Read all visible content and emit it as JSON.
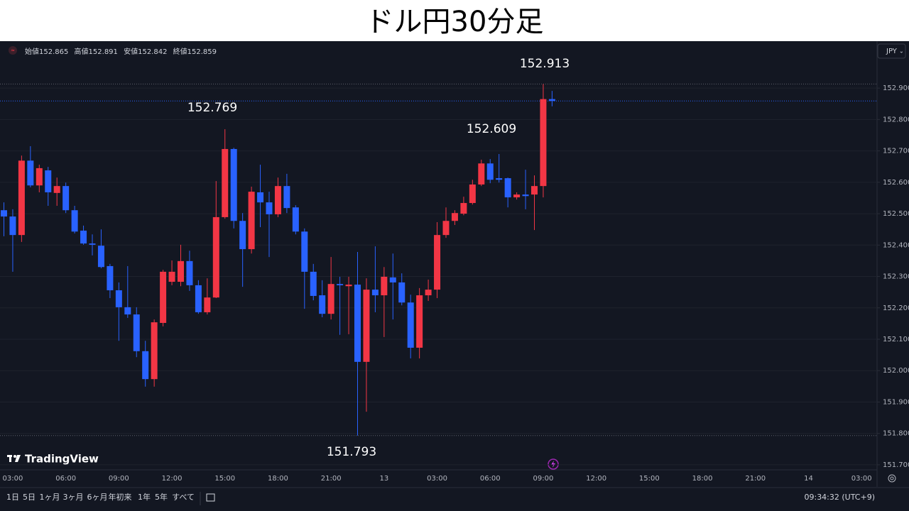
{
  "header_title": "ドル円30分足",
  "ohlc_header": [
    {
      "label": "始値",
      "value": 152.865
    },
    {
      "label": "高値",
      "value": 152.891
    },
    {
      "label": "安値",
      "value": 152.842
    },
    {
      "label": "終値",
      "value": 152.859
    }
  ],
  "currency": "JPY",
  "brand": "TradingView",
  "ranges": [
    "1日",
    "5日",
    "1ヶ月",
    "3ヶ月",
    "6ヶ月",
    "年初来",
    "1年",
    "5年",
    "すべて"
  ],
  "clock": "09:34:32 (UTC+9)",
  "chart_data": {
    "type": "candlestick",
    "annotations": [
      "152.913",
      "152.769",
      "152.609",
      "151.793"
    ],
    "up_color": "#f23645",
    "down_color": "#2962ff",
    "ylim": [
      151.684,
      153.045
    ],
    "yticks": [
      {
        "value": 151.7,
        "label": "151.700"
      },
      {
        "value": 151.8,
        "label": "151.800"
      },
      {
        "value": 151.9,
        "label": "151.900"
      },
      {
        "value": 152,
        "label": "152.000"
      },
      {
        "value": 152.1,
        "label": "152.100"
      },
      {
        "value": 152.2,
        "label": "152.200"
      },
      {
        "value": 152.3,
        "label": "152.300"
      },
      {
        "value": 152.4,
        "label": "152.400"
      },
      {
        "value": 152.5,
        "label": "152.500"
      },
      {
        "value": 152.6,
        "label": "152.600"
      },
      {
        "value": 152.7,
        "label": "152.700"
      },
      {
        "value": 152.8,
        "label": "152.800"
      },
      {
        "value": 152.9,
        "label": "152.900"
      }
    ],
    "grid": true,
    "categories": [
      null,
      "03:00",
      null,
      null,
      null,
      null,
      null,
      "06:00",
      null,
      null,
      null,
      null,
      null,
      "09:00",
      null,
      null,
      null,
      null,
      null,
      "12:00",
      null,
      null,
      null,
      null,
      null,
      "15:00",
      null,
      null,
      null,
      null,
      null,
      "18:00",
      null,
      null,
      null,
      null,
      null,
      "21:00",
      null,
      null,
      null,
      null,
      null,
      "13",
      null,
      null,
      null,
      null,
      null,
      "03:00",
      null,
      null,
      null,
      null,
      null,
      "06:00",
      null,
      null,
      null,
      null,
      null,
      "09:00",
      null,
      null,
      null,
      null,
      null,
      "12:00",
      null,
      null,
      null,
      null,
      null,
      "15:00",
      null,
      null,
      null,
      null,
      null,
      "18:00",
      null,
      null,
      null,
      null,
      null,
      "21:00",
      null,
      null,
      null,
      null,
      null,
      "14",
      null,
      null,
      null,
      null,
      null,
      "03:00"
    ],
    "open": [
      152.511,
      152.491,
      152.432,
      152.669,
      152.59,
      152.638,
      152.566,
      152.588,
      152.511,
      152.446,
      152.405,
      152.398,
      152.333,
      152.256,
      152.202,
      152.179,
      152.062,
      151.973,
      152.152,
      152.283,
      152.283,
      152.349,
      152.272,
      152.186,
      152.233,
      152.489,
      152.706,
      152.477,
      152.387,
      152.568,
      152.536,
      152.498,
      152.588,
      152.52,
      152.443,
      152.315,
      152.24,
      152.181,
      152.276,
      152.269,
      152.274,
      152.028,
      152.258,
      152.24,
      152.297,
      152.281,
      152.217,
      152.073,
      152.24,
      152.258,
      152.432,
      152.477,
      152.5,
      152.534,
      152.593,
      152.66,
      152.613,
      152.613,
      152.552,
      152.561,
      152.561,
      152.588,
      152.865,
      null,
      null,
      null,
      null,
      null,
      null,
      null,
      null,
      null,
      null,
      null,
      null,
      null,
      null,
      null,
      null,
      null,
      null,
      null,
      null,
      null,
      null,
      null,
      null,
      null,
      null,
      null,
      null,
      null,
      null,
      null,
      null,
      null,
      null,
      null
    ],
    "high": [
      152.536,
      152.514,
      152.685,
      152.715,
      152.656,
      152.649,
      152.615,
      152.599,
      152.525,
      152.462,
      152.434,
      152.45,
      152.34,
      152.281,
      152.333,
      152.202,
      152.095,
      152.163,
      152.321,
      152.351,
      152.401,
      152.382,
      152.288,
      152.294,
      152.604,
      152.769,
      152.71,
      152.502,
      152.586,
      152.656,
      152.57,
      152.615,
      152.627,
      152.527,
      152.453,
      152.34,
      152.288,
      152.362,
      152.299,
      152.299,
      152.378,
      152.294,
      152.396,
      152.33,
      152.373,
      152.31,
      152.242,
      152.263,
      152.29,
      152.473,
      152.52,
      152.511,
      152.554,
      152.608,
      152.672,
      152.674,
      152.69,
      152.615,
      152.568,
      152.64,
      152.622,
      152.913,
      152.891,
      null,
      null,
      null,
      null,
      null,
      null,
      null,
      null,
      null,
      null,
      null,
      null,
      null,
      null,
      null,
      null,
      null,
      null,
      null,
      null,
      null,
      null,
      null,
      null,
      null,
      null,
      null,
      null,
      null,
      null,
      null,
      null,
      null,
      null,
      null
    ],
    "low": [
      152.428,
      152.315,
      152.41,
      152.584,
      152.568,
      152.525,
      152.525,
      152.502,
      152.437,
      152.401,
      152.367,
      152.326,
      152.231,
      152.095,
      152.168,
      152.043,
      151.949,
      151.949,
      152.141,
      152.272,
      152.269,
      152.254,
      152.181,
      152.179,
      152.231,
      152.484,
      152.453,
      152.267,
      152.373,
      152.457,
      152.362,
      152.489,
      152.502,
      152.434,
      152.197,
      152.224,
      152.17,
      152.163,
      152.114,
      152.116,
      151.793,
      151.869,
      152.186,
      152.107,
      152.163,
      152.208,
      152.039,
      152.039,
      152.222,
      152.231,
      152.423,
      152.464,
      152.495,
      152.529,
      152.588,
      152.597,
      152.599,
      152.52,
      152.545,
      152.514,
      152.448,
      152.552,
      152.842,
      null,
      null,
      null,
      null,
      null,
      null,
      null,
      null,
      null,
      null,
      null,
      null,
      null,
      null,
      null,
      null,
      null,
      null,
      null,
      null,
      null,
      null,
      null,
      null,
      null,
      null,
      null,
      null,
      null,
      null,
      null,
      null,
      null,
      null,
      null
    ],
    "close": [
      152.491,
      152.432,
      152.669,
      152.59,
      152.645,
      152.568,
      152.588,
      152.511,
      152.443,
      152.405,
      152.401,
      152.33,
      152.256,
      152.202,
      152.179,
      152.062,
      151.973,
      152.154,
      152.315,
      152.315,
      152.349,
      152.272,
      152.186,
      152.233,
      152.489,
      152.706,
      152.477,
      152.387,
      152.57,
      152.536,
      152.498,
      152.588,
      152.518,
      152.443,
      152.315,
      152.238,
      152.181,
      152.276,
      152.272,
      152.274,
      152.028,
      152.258,
      152.24,
      152.299,
      152.281,
      152.217,
      152.073,
      152.24,
      152.258,
      152.432,
      152.477,
      152.502,
      152.534,
      152.593,
      152.66,
      152.608,
      152.608,
      152.552,
      152.561,
      152.556,
      152.588,
      152.865,
      152.859,
      null,
      null,
      null,
      null,
      null,
      null,
      null,
      null,
      null,
      null,
      null,
      null,
      null,
      null,
      null,
      null,
      null,
      null,
      null,
      null,
      null,
      null,
      null,
      null,
      null,
      null,
      null,
      null,
      null,
      null,
      null,
      null,
      null,
      null,
      null
    ]
  }
}
